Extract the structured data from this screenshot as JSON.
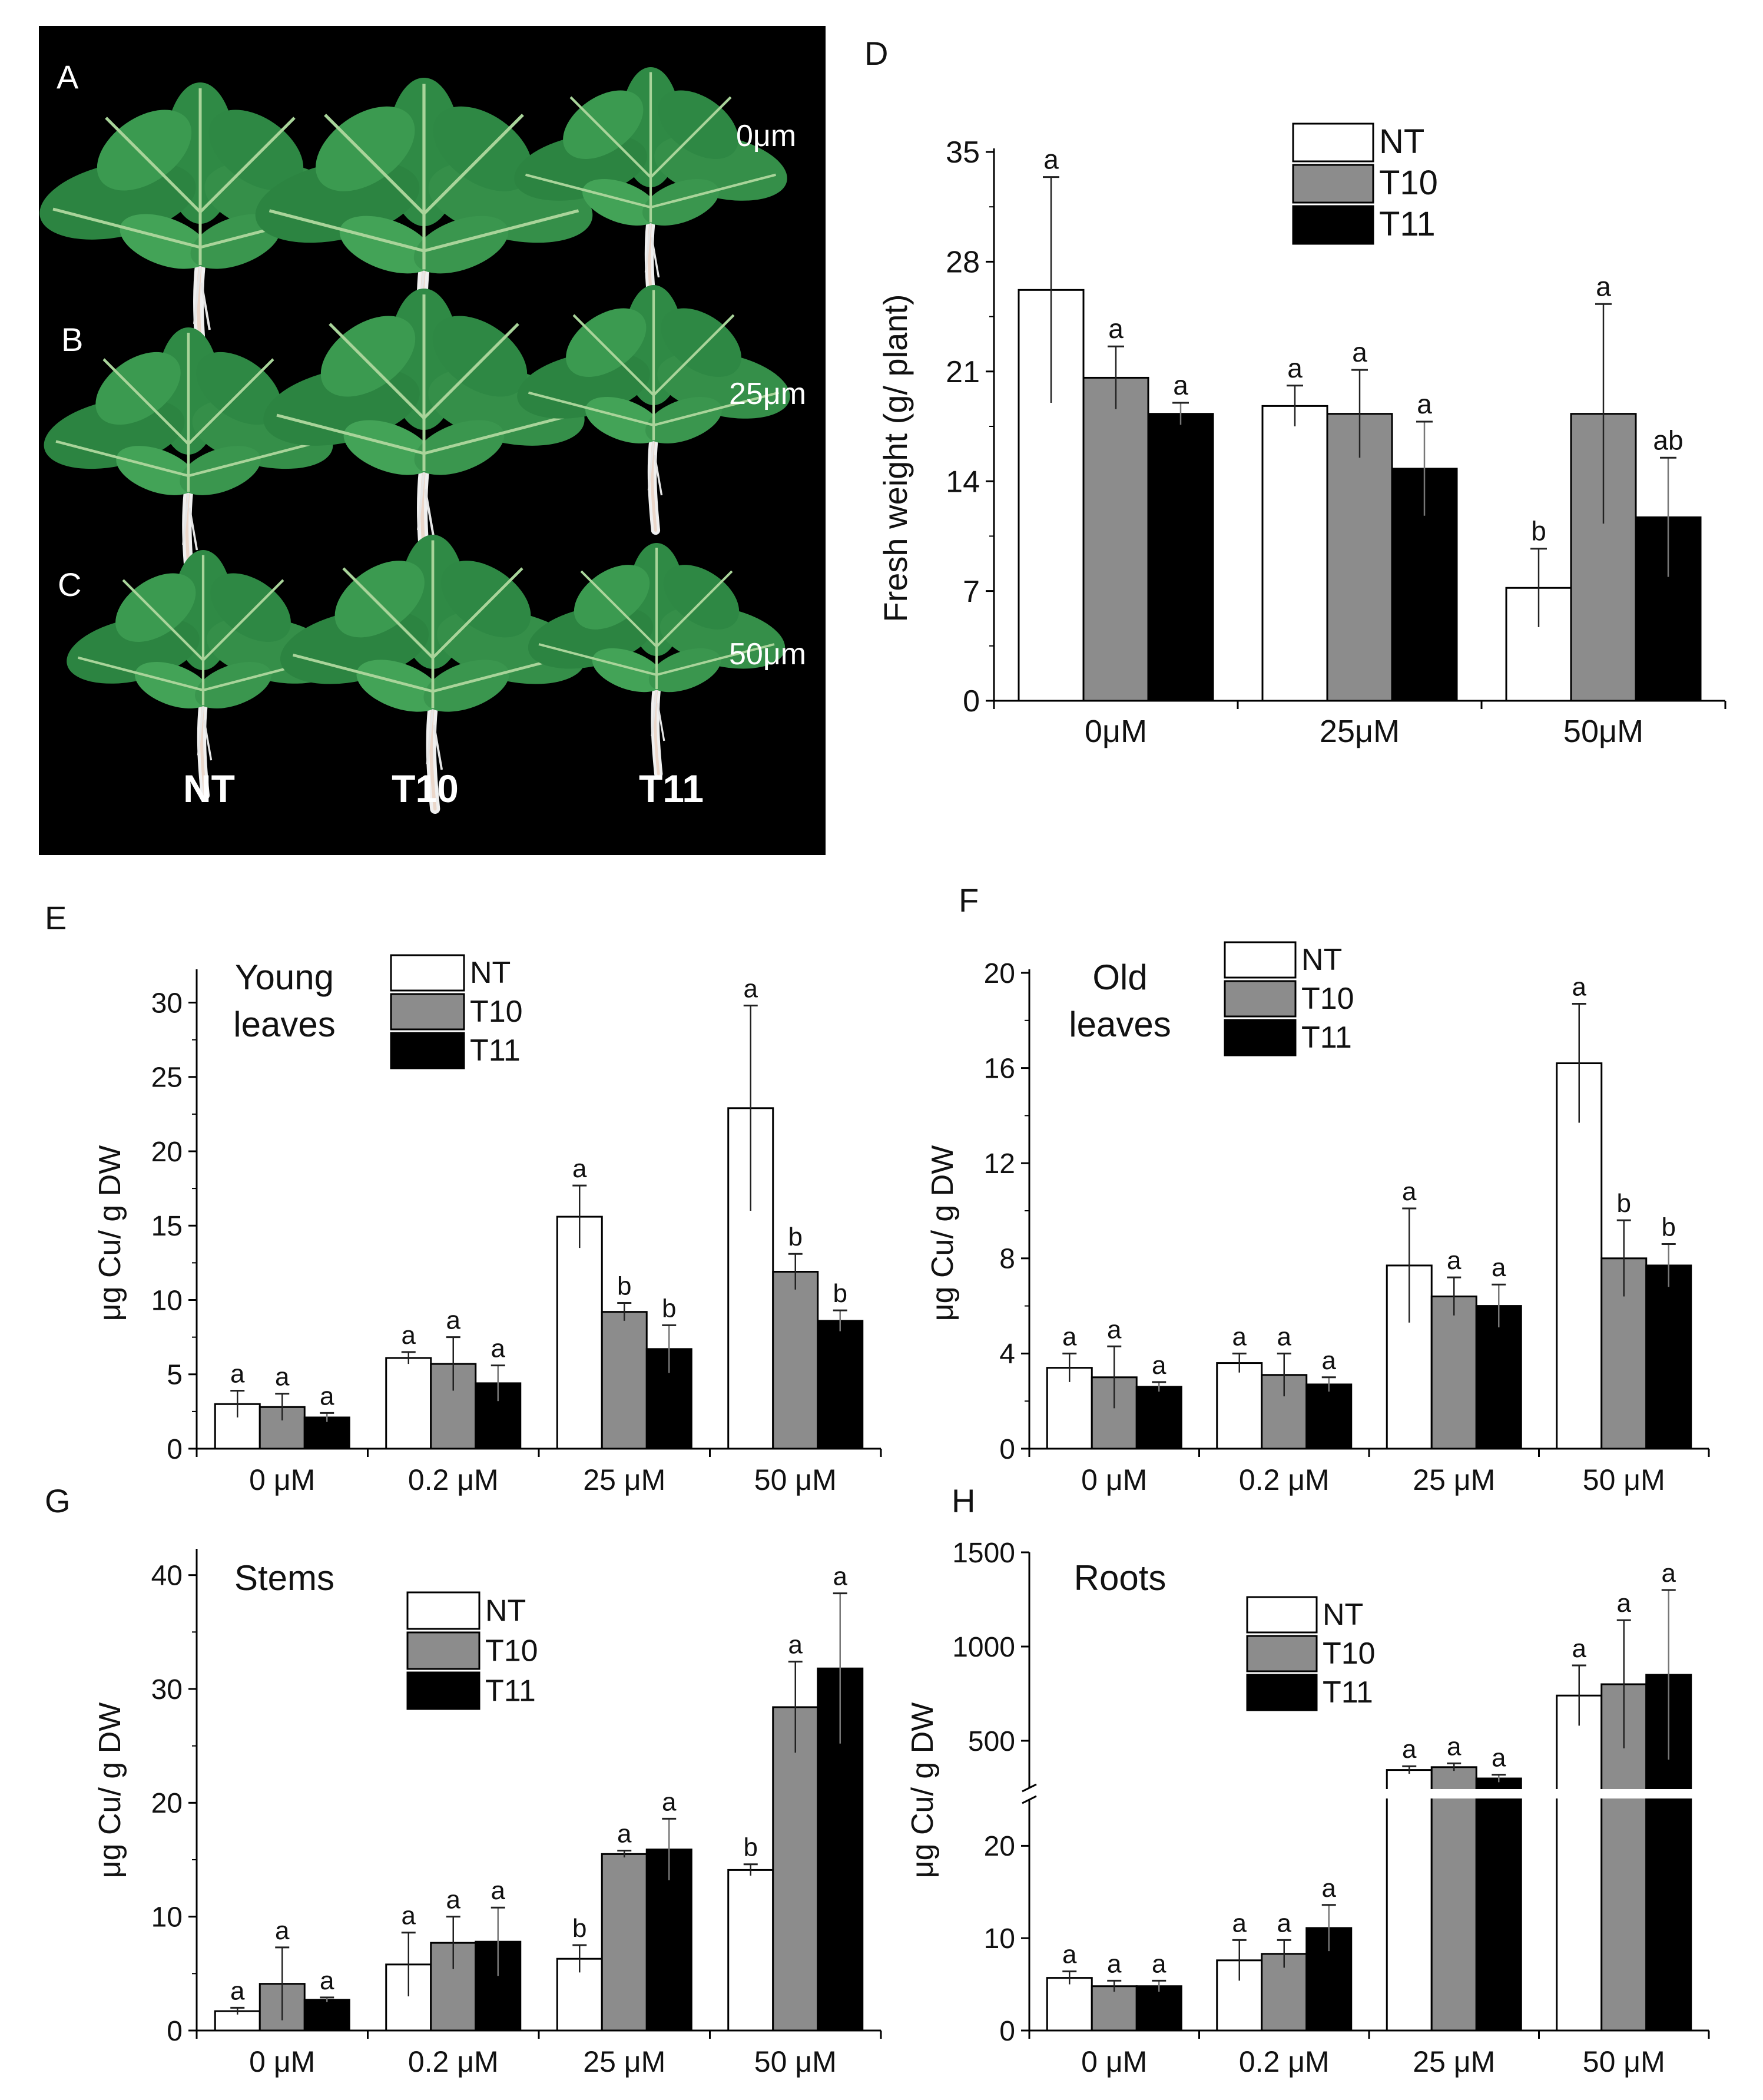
{
  "colors": {
    "NT": "#ffffff",
    "T10": "#8c8c8c",
    "T11": "#000000",
    "axis": "#111111",
    "photo_bg": "#000000"
  },
  "photo": {
    "label_A": "A",
    "label_B": "B",
    "label_C": "C",
    "rows": [
      {
        "label": "A",
        "concentration": "0μm"
      },
      {
        "label": "B",
        "concentration": "25μm"
      },
      {
        "label": "C",
        "concentration": "50μm"
      }
    ],
    "columns": [
      "NT",
      "T10",
      "T11"
    ]
  },
  "chart_data": [
    {
      "panel": "D",
      "type": "bar",
      "title": "",
      "xlabel": "",
      "ylabel": "Fresh weight (g/ plant)",
      "ylim": [
        0,
        35
      ],
      "yticks": [
        0,
        7,
        14,
        21,
        28,
        35
      ],
      "categories": [
        "0μM",
        "25μM",
        "50μM"
      ],
      "series": [
        {
          "name": "NT",
          "values": [
            26.2,
            18.8,
            7.2
          ],
          "errors": [
            7.2,
            1.3,
            2.5
          ],
          "letters": [
            "a",
            "a",
            "b"
          ]
        },
        {
          "name": "T10",
          "values": [
            20.6,
            18.3,
            18.3
          ],
          "errors": [
            2.0,
            2.8,
            7.0
          ],
          "letters": [
            "a",
            "a",
            "a"
          ]
        },
        {
          "name": "T11",
          "values": [
            18.3,
            14.8,
            11.7
          ],
          "errors": [
            0.7,
            3.0,
            3.8
          ],
          "letters": [
            "a",
            "a",
            "ab"
          ]
        }
      ],
      "legend": [
        "NT",
        "T10",
        "T11"
      ]
    },
    {
      "panel": "E",
      "type": "bar",
      "title": "Young leaves",
      "title_lines": [
        "Young",
        "leaves"
      ],
      "xlabel": "",
      "ylabel": "μg Cu/ g DW",
      "ylim": [
        0,
        32
      ],
      "yticks": [
        0,
        5,
        10,
        15,
        20,
        25,
        30
      ],
      "categories": [
        "0 μM",
        "0.2 μM",
        "25 μM",
        "50 μM"
      ],
      "series": [
        {
          "name": "NT",
          "values": [
            3.0,
            6.1,
            15.6,
            22.9
          ],
          "errors": [
            0.9,
            0.4,
            2.1,
            6.9
          ],
          "letters": [
            "a",
            "a",
            "a",
            "a"
          ]
        },
        {
          "name": "T10",
          "values": [
            2.8,
            5.7,
            9.2,
            11.9
          ],
          "errors": [
            0.9,
            1.8,
            0.6,
            1.2
          ],
          "letters": [
            "a",
            "a",
            "b",
            "b"
          ]
        },
        {
          "name": "T11",
          "values": [
            2.1,
            4.4,
            6.7,
            8.6
          ],
          "errors": [
            0.3,
            1.2,
            1.6,
            0.7
          ],
          "letters": [
            "a",
            "a",
            "b",
            "b"
          ]
        }
      ],
      "legend": [
        "NT",
        "T10",
        "T11"
      ]
    },
    {
      "panel": "F",
      "type": "bar",
      "title": "Old leaves",
      "title_lines": [
        "Old",
        "leaves"
      ],
      "xlabel": "",
      "ylabel": "μg Cu/ g DW",
      "ylim": [
        0,
        20
      ],
      "yticks": [
        0,
        4,
        8,
        12,
        16,
        20
      ],
      "categories": [
        "0 μM",
        "0.2 μM",
        "25 μM",
        "50 μM"
      ],
      "series": [
        {
          "name": "NT",
          "values": [
            3.4,
            3.6,
            7.7,
            16.2
          ],
          "errors": [
            0.6,
            0.4,
            2.4,
            2.5
          ],
          "letters": [
            "a",
            "a",
            "a",
            "a"
          ]
        },
        {
          "name": "T10",
          "values": [
            3.0,
            3.1,
            6.4,
            8.0
          ],
          "errors": [
            1.3,
            0.9,
            0.8,
            1.6
          ],
          "letters": [
            "a",
            "a",
            "a",
            "b"
          ]
        },
        {
          "name": "T11",
          "values": [
            2.6,
            2.7,
            6.0,
            7.7
          ],
          "errors": [
            0.2,
            0.3,
            0.9,
            0.9
          ],
          "letters": [
            "a",
            "a",
            "a",
            "b"
          ]
        }
      ],
      "legend": [
        "NT",
        "T10",
        "T11"
      ]
    },
    {
      "panel": "G",
      "type": "bar",
      "title": "Stems",
      "xlabel": "",
      "ylabel": "μg Cu/ g DW",
      "ylim": [
        0,
        42
      ],
      "yticks": [
        0,
        10,
        20,
        30,
        40
      ],
      "categories": [
        "0 μM",
        "0.2 μM",
        "25 μM",
        "50 μM"
      ],
      "series": [
        {
          "name": "NT",
          "values": [
            1.7,
            5.8,
            6.3,
            14.1
          ],
          "errors": [
            0.3,
            2.8,
            1.2,
            0.5
          ],
          "letters": [
            "a",
            "a",
            "b",
            "b"
          ]
        },
        {
          "name": "T10",
          "values": [
            4.1,
            7.7,
            15.5,
            28.4
          ],
          "errors": [
            3.2,
            2.3,
            0.3,
            4.0
          ],
          "letters": [
            "a",
            "a",
            "a",
            "a"
          ]
        },
        {
          "name": "T11",
          "values": [
            2.7,
            7.8,
            15.9,
            31.8
          ],
          "errors": [
            0.2,
            3.0,
            2.7,
            6.6
          ],
          "letters": [
            "a",
            "a",
            "a",
            "a"
          ]
        }
      ],
      "legend": [
        "NT",
        "T10",
        "T11"
      ]
    },
    {
      "panel": "H",
      "type": "bar",
      "title": "Roots",
      "xlabel": "",
      "ylabel": "μg Cu/ g DW",
      "axis_break": true,
      "lower_ylim": [
        0,
        25
      ],
      "lower_yticks": [
        0,
        10,
        20
      ],
      "upper_ylim": [
        250,
        1500
      ],
      "upper_yticks": [
        500,
        1000,
        1500
      ],
      "categories": [
        "0 μM",
        "0.2 μM",
        "25 μM",
        "50 μM"
      ],
      "series": [
        {
          "name": "NT",
          "values": [
            5.7,
            7.6,
            345,
            740
          ],
          "errors": [
            0.7,
            2.2,
            20,
            160
          ],
          "letters": [
            "a",
            "a",
            "a",
            "a"
          ]
        },
        {
          "name": "T10",
          "values": [
            4.8,
            8.3,
            360,
            800
          ],
          "errors": [
            0.6,
            1.5,
            20,
            340
          ],
          "letters": [
            "a",
            "a",
            "a",
            "a"
          ]
        },
        {
          "name": "T11",
          "values": [
            4.8,
            11.1,
            300,
            850
          ],
          "errors": [
            0.6,
            2.5,
            20,
            450
          ],
          "letters": [
            "a",
            "a",
            "a",
            "a"
          ]
        }
      ],
      "legend": [
        "NT",
        "T10",
        "T11"
      ]
    }
  ]
}
